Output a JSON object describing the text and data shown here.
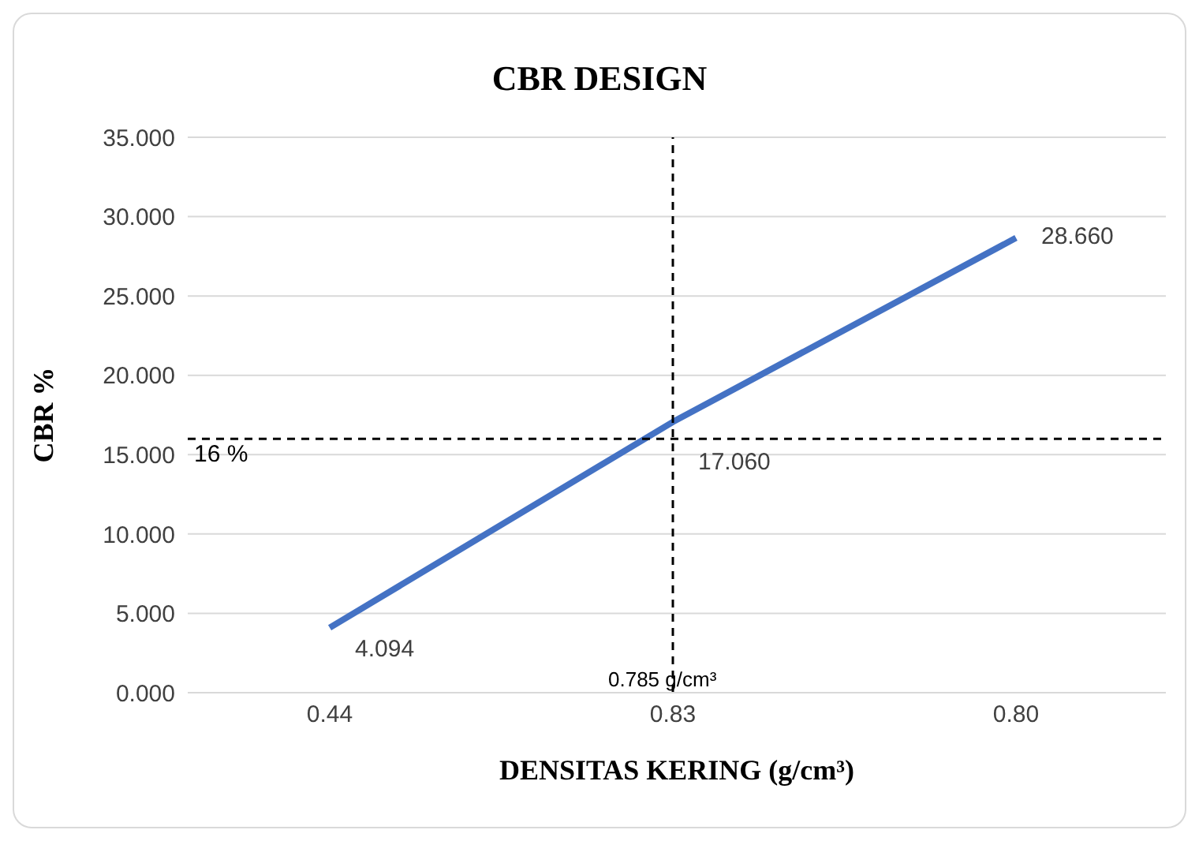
{
  "chart_data": {
    "type": "line",
    "title": "CBR DESIGN",
    "xlabel": "DENSITAS KERING (g/cm³)",
    "ylabel": "CBR %",
    "categories": [
      "0.44",
      "0.83",
      "0.80"
    ],
    "series": [
      {
        "color": "#4472c4",
        "values": [
          4.094,
          17.06,
          28.66
        ],
        "value_labels": [
          "4.094",
          "17.060",
          "28.660"
        ]
      }
    ],
    "ylim": [
      0,
      35
    ],
    "yticks": [
      {
        "value": 0,
        "label": "0.000"
      },
      {
        "value": 5,
        "label": "5.000"
      },
      {
        "value": 10,
        "label": "10.000"
      },
      {
        "value": 15,
        "label": "15.000"
      },
      {
        "value": 20,
        "label": "20.000"
      },
      {
        "value": 25,
        "label": "25.000"
      },
      {
        "value": 30,
        "label": "30.000"
      },
      {
        "value": 35,
        "label": "35.000"
      }
    ],
    "ref_lines": [
      {
        "axis": "y",
        "value": 16,
        "label": "16 %",
        "color": "#000000",
        "line_style": "dashed"
      },
      {
        "axis": "x",
        "value": "0.83",
        "label": "0.785 g/cm³",
        "color": "#000000",
        "line_style": "dashed"
      }
    ],
    "grid": "y",
    "legend": false,
    "marker": "none",
    "line_style": "solid"
  }
}
